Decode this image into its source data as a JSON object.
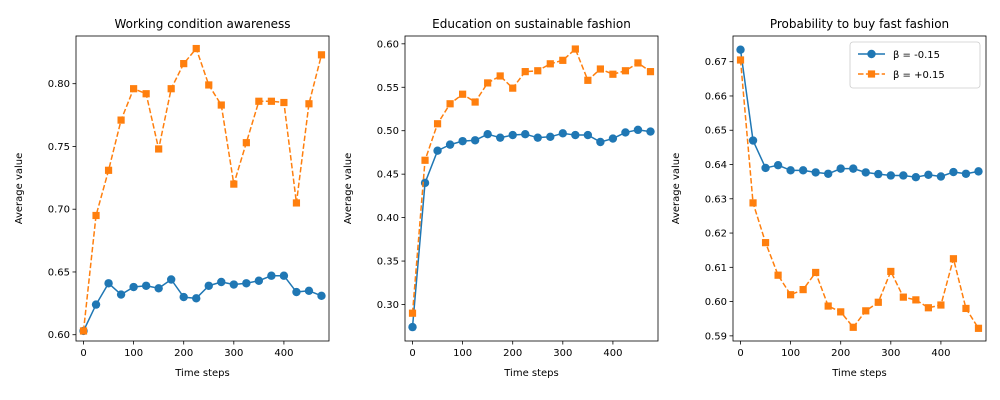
{
  "colors": {
    "series1": "#1f77b4",
    "series2": "#ff7f0e"
  },
  "legend": {
    "entries": [
      "β = -0.15",
      "β = +0.15"
    ],
    "location": "top-right"
  },
  "chart_data": [
    {
      "type": "line",
      "title": "Working condition awareness",
      "xlabel": "Time steps",
      "ylabel": "Average value",
      "xlim": [
        -15,
        490
      ],
      "ylim": [
        0.595,
        0.838
      ],
      "xticks": [
        0,
        100,
        200,
        300,
        400
      ],
      "yticks": [
        0.6,
        0.65,
        0.7,
        0.75,
        0.8
      ],
      "ytick_labels": [
        "0.60",
        "0.65",
        "0.70",
        "0.75",
        "0.80"
      ],
      "x": [
        0,
        25,
        50,
        75,
        100,
        125,
        150,
        175,
        200,
        225,
        250,
        275,
        300,
        325,
        350,
        375,
        400,
        425,
        450,
        475
      ],
      "series": [
        {
          "name": "β = -0.15",
          "marker": "circle",
          "dashed": false,
          "values": [
            0.603,
            0.624,
            0.641,
            0.632,
            0.638,
            0.639,
            0.637,
            0.644,
            0.63,
            0.629,
            0.639,
            0.642,
            0.64,
            0.641,
            0.643,
            0.647,
            0.647,
            0.634,
            0.635,
            0.631
          ]
        },
        {
          "name": "β = +0.15",
          "marker": "square",
          "dashed": true,
          "values": [
            0.603,
            0.695,
            0.731,
            0.771,
            0.796,
            0.792,
            0.748,
            0.796,
            0.816,
            0.828,
            0.799,
            0.783,
            0.72,
            0.753,
            0.786,
            0.786,
            0.785,
            0.705,
            0.784,
            0.823
          ]
        }
      ]
    },
    {
      "type": "line",
      "title": "Education on sustainable fashion",
      "xlabel": "Time steps",
      "ylabel": "Average value",
      "xlim": [
        -15,
        490
      ],
      "ylim": [
        0.258,
        0.609
      ],
      "xticks": [
        0,
        100,
        200,
        300,
        400
      ],
      "yticks": [
        0.3,
        0.35,
        0.4,
        0.45,
        0.5,
        0.55,
        0.6
      ],
      "ytick_labels": [
        "0.30",
        "0.35",
        "0.40",
        "0.45",
        "0.50",
        "0.55",
        "0.60"
      ],
      "x": [
        0,
        25,
        50,
        75,
        100,
        125,
        150,
        175,
        200,
        225,
        250,
        275,
        300,
        325,
        350,
        375,
        400,
        425,
        450,
        475
      ],
      "series": [
        {
          "name": "β = -0.15",
          "marker": "circle",
          "dashed": false,
          "values": [
            0.274,
            0.44,
            0.477,
            0.484,
            0.488,
            0.489,
            0.496,
            0.492,
            0.495,
            0.496,
            0.492,
            0.493,
            0.497,
            0.495,
            0.495,
            0.487,
            0.491,
            0.498,
            0.501,
            0.499
          ]
        },
        {
          "name": "β = +0.15",
          "marker": "square",
          "dashed": true,
          "values": [
            0.29,
            0.466,
            0.508,
            0.531,
            0.542,
            0.533,
            0.555,
            0.563,
            0.549,
            0.568,
            0.569,
            0.577,
            0.581,
            0.594,
            0.558,
            0.571,
            0.565,
            0.569,
            0.578,
            0.568
          ]
        }
      ]
    },
    {
      "type": "line",
      "title": "Probability to buy fast fashion",
      "xlabel": "Time steps",
      "ylabel": "Average value",
      "xlim": [
        -15,
        490
      ],
      "ylim": [
        0.5885,
        0.6775
      ],
      "xticks": [
        0,
        100,
        200,
        300,
        400
      ],
      "yticks": [
        0.59,
        0.6,
        0.61,
        0.62,
        0.63,
        0.64,
        0.65,
        0.66,
        0.67
      ],
      "ytick_labels": [
        "0.59",
        "0.60",
        "0.61",
        "0.62",
        "0.63",
        "0.64",
        "0.65",
        "0.66",
        "0.67"
      ],
      "x": [
        0,
        25,
        50,
        75,
        100,
        125,
        150,
        175,
        200,
        225,
        250,
        275,
        300,
        325,
        350,
        375,
        400,
        425,
        450,
        475
      ],
      "series": [
        {
          "name": "β = -0.15",
          "marker": "circle",
          "dashed": false,
          "values": [
            0.6735,
            0.647,
            0.639,
            0.6398,
            0.6383,
            0.6383,
            0.6377,
            0.6373,
            0.6388,
            0.6388,
            0.6377,
            0.6372,
            0.6368,
            0.6368,
            0.6363,
            0.637,
            0.6365,
            0.6378,
            0.6373,
            0.638
          ]
        },
        {
          "name": "β = +0.15",
          "marker": "square",
          "dashed": true,
          "values": [
            0.6705,
            0.6288,
            0.6172,
            0.6077,
            0.602,
            0.6035,
            0.6085,
            0.5987,
            0.597,
            0.5925,
            0.5973,
            0.5998,
            0.6088,
            0.6013,
            0.6005,
            0.5982,
            0.599,
            0.6125,
            0.598,
            0.5922
          ]
        }
      ]
    }
  ]
}
